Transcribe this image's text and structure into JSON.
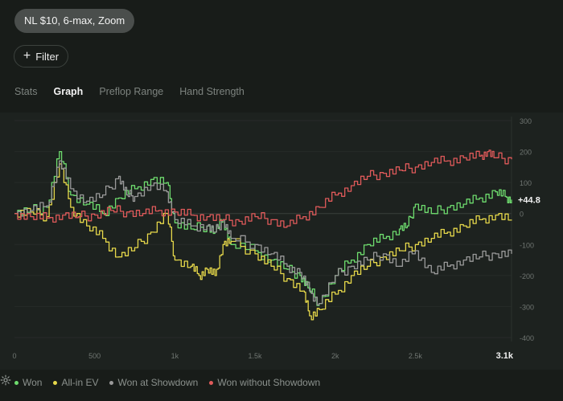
{
  "header": {
    "chip_label": "NL $10, 6-max, Zoom",
    "filter_label": "Filter"
  },
  "tabs": [
    {
      "label": "Stats",
      "active": false
    },
    {
      "label": "Graph",
      "active": true
    },
    {
      "label": "Preflop Range",
      "active": false
    },
    {
      "label": "Hand Strength",
      "active": false
    }
  ],
  "legend": [
    {
      "label": "Won",
      "color": "#6edc6e"
    },
    {
      "label": "All-in EV",
      "color": "#e6d84a"
    },
    {
      "label": "Won at Showdown",
      "color": "#9a9a9a"
    },
    {
      "label": "Won without Showdown",
      "color": "#e05a5a"
    }
  ],
  "chart_data": {
    "type": "line",
    "x_ticks": [
      "0",
      "500",
      "1k",
      "1.5k",
      "2k",
      "2.5k",
      "3.1k"
    ],
    "y_ticks": [
      "300",
      "200",
      "100",
      "0",
      "-100",
      "-200",
      "-300",
      "-400"
    ],
    "xlim": [
      0,
      3100
    ],
    "ylim": [
      -400,
      300
    ],
    "end_label": "+44.8",
    "series": [
      {
        "name": "Won",
        "color": "#6edc6e",
        "points": [
          [
            0,
            0
          ],
          [
            100,
            10
          ],
          [
            200,
            20
          ],
          [
            280,
            200
          ],
          [
            350,
            60
          ],
          [
            450,
            30
          ],
          [
            550,
            0
          ],
          [
            650,
            50
          ],
          [
            750,
            80
          ],
          [
            850,
            110
          ],
          [
            950,
            100
          ],
          [
            1000,
            -30
          ],
          [
            1100,
            -50
          ],
          [
            1200,
            -40
          ],
          [
            1250,
            -60
          ],
          [
            1300,
            -20
          ],
          [
            1350,
            -100
          ],
          [
            1500,
            -120
          ],
          [
            1600,
            -150
          ],
          [
            1700,
            -180
          ],
          [
            1780,
            -200
          ],
          [
            1830,
            -240
          ],
          [
            1900,
            -290
          ],
          [
            2000,
            -200
          ],
          [
            2100,
            -150
          ],
          [
            2200,
            -100
          ],
          [
            2300,
            -80
          ],
          [
            2400,
            -50
          ],
          [
            2450,
            -40
          ],
          [
            2500,
            30
          ],
          [
            2600,
            0
          ],
          [
            2700,
            20
          ],
          [
            2800,
            30
          ],
          [
            2900,
            50
          ],
          [
            3000,
            70
          ],
          [
            3060,
            55
          ],
          [
            3100,
            45
          ]
        ]
      },
      {
        "name": "All-in EV",
        "color": "#e6d84a",
        "points": [
          [
            0,
            0
          ],
          [
            100,
            5
          ],
          [
            200,
            -10
          ],
          [
            280,
            160
          ],
          [
            350,
            20
          ],
          [
            450,
            -40
          ],
          [
            550,
            -80
          ],
          [
            650,
            -140
          ],
          [
            750,
            -110
          ],
          [
            850,
            -60
          ],
          [
            950,
            0
          ],
          [
            1000,
            -150
          ],
          [
            1100,
            -170
          ],
          [
            1150,
            -200
          ],
          [
            1200,
            -180
          ],
          [
            1250,
            -200
          ],
          [
            1300,
            -100
          ],
          [
            1350,
            -90
          ],
          [
            1500,
            -130
          ],
          [
            1600,
            -170
          ],
          [
            1700,
            -210
          ],
          [
            1800,
            -250
          ],
          [
            1840,
            -330
          ],
          [
            1900,
            -310
          ],
          [
            2000,
            -260
          ],
          [
            2100,
            -200
          ],
          [
            2200,
            -170
          ],
          [
            2300,
            -140
          ],
          [
            2400,
            -120
          ],
          [
            2500,
            -100
          ],
          [
            2600,
            -80
          ],
          [
            2700,
            -60
          ],
          [
            2800,
            -40
          ],
          [
            2900,
            -20
          ],
          [
            3000,
            -5
          ],
          [
            3100,
            -20
          ]
        ]
      },
      {
        "name": "Won at Showdown",
        "color": "#9a9a9a",
        "points": [
          [
            0,
            0
          ],
          [
            100,
            10
          ],
          [
            200,
            25
          ],
          [
            280,
            170
          ],
          [
            350,
            80
          ],
          [
            450,
            40
          ],
          [
            550,
            60
          ],
          [
            650,
            120
          ],
          [
            700,
            60
          ],
          [
            750,
            55
          ],
          [
            850,
            90
          ],
          [
            950,
            70
          ],
          [
            1000,
            -20
          ],
          [
            1100,
            -40
          ],
          [
            1200,
            -40
          ],
          [
            1250,
            -60
          ],
          [
            1300,
            -20
          ],
          [
            1350,
            -80
          ],
          [
            1500,
            -100
          ],
          [
            1600,
            -130
          ],
          [
            1700,
            -170
          ],
          [
            1780,
            -190
          ],
          [
            1840,
            -250
          ],
          [
            1900,
            -290
          ],
          [
            2000,
            -200
          ],
          [
            2100,
            -170
          ],
          [
            2200,
            -150
          ],
          [
            2300,
            -130
          ],
          [
            2400,
            -170
          ],
          [
            2500,
            -120
          ],
          [
            2600,
            -190
          ],
          [
            2700,
            -170
          ],
          [
            2800,
            -150
          ],
          [
            2900,
            -140
          ],
          [
            3000,
            -130
          ],
          [
            3100,
            -130
          ]
        ]
      },
      {
        "name": "Won without Showdown",
        "color": "#e05a5a",
        "points": [
          [
            0,
            0
          ],
          [
            100,
            -10
          ],
          [
            200,
            -15
          ],
          [
            300,
            -5
          ],
          [
            400,
            -10
          ],
          [
            500,
            -5
          ],
          [
            600,
            10
          ],
          [
            700,
            5
          ],
          [
            800,
            0
          ],
          [
            900,
            10
          ],
          [
            1000,
            5
          ],
          [
            1100,
            -5
          ],
          [
            1200,
            -10
          ],
          [
            1300,
            -20
          ],
          [
            1400,
            -25
          ],
          [
            1500,
            -10
          ],
          [
            1600,
            -20
          ],
          [
            1700,
            -40
          ],
          [
            1800,
            -10
          ],
          [
            1900,
            20
          ],
          [
            2000,
            60
          ],
          [
            2100,
            90
          ],
          [
            2200,
            120
          ],
          [
            2300,
            130
          ],
          [
            2400,
            140
          ],
          [
            2500,
            150
          ],
          [
            2600,
            165
          ],
          [
            2700,
            170
          ],
          [
            2800,
            180
          ],
          [
            2900,
            185
          ],
          [
            2950,
            200
          ],
          [
            3000,
            180
          ],
          [
            3100,
            175
          ]
        ]
      }
    ]
  }
}
